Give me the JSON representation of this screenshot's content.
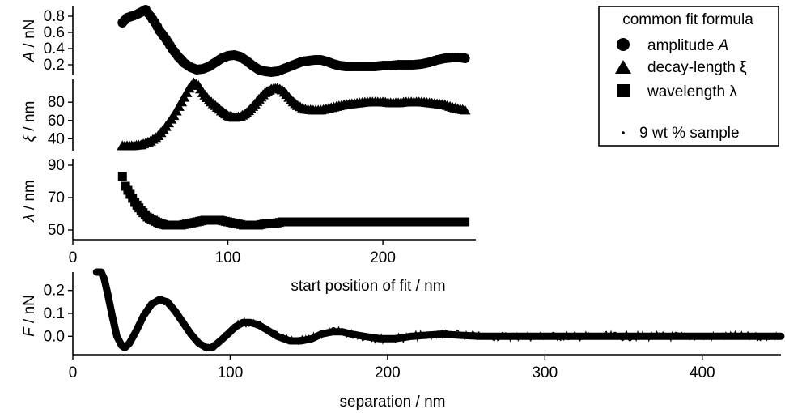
{
  "chart_data": [
    {
      "type": "scatter",
      "id": "amplitude",
      "ylabel": "A / nN",
      "ylabel_var": "A",
      "ylabel_unit": " / nN",
      "ylim": [
        0.08,
        0.92
      ],
      "yticks": [
        0.2,
        0.4,
        0.6,
        0.8
      ],
      "ytick_labels": [
        "0.2",
        "0.4",
        "0.6",
        "0.8"
      ],
      "marker": "circle",
      "series": [
        {
          "name": "amplitude A",
          "x": [
            32,
            35,
            38,
            41,
            44,
            47,
            50,
            53,
            56,
            60,
            64,
            68,
            72,
            76,
            80,
            84,
            88,
            92,
            96,
            100,
            104,
            108,
            112,
            116,
            120,
            124,
            128,
            132,
            136,
            140,
            144,
            148,
            152,
            156,
            160,
            164,
            168,
            172,
            176,
            180,
            185,
            190,
            195,
            200,
            205,
            210,
            215,
            220,
            225,
            230,
            235,
            240,
            245,
            250,
            253
          ],
          "y": [
            0.72,
            0.78,
            0.8,
            0.82,
            0.85,
            0.88,
            0.8,
            0.72,
            0.62,
            0.52,
            0.4,
            0.3,
            0.22,
            0.17,
            0.14,
            0.15,
            0.18,
            0.23,
            0.28,
            0.31,
            0.32,
            0.3,
            0.25,
            0.19,
            0.14,
            0.12,
            0.11,
            0.12,
            0.15,
            0.18,
            0.21,
            0.24,
            0.25,
            0.26,
            0.26,
            0.24,
            0.21,
            0.19,
            0.18,
            0.18,
            0.18,
            0.18,
            0.18,
            0.19,
            0.19,
            0.2,
            0.2,
            0.2,
            0.21,
            0.23,
            0.26,
            0.28,
            0.29,
            0.29,
            0.28
          ]
        }
      ]
    },
    {
      "type": "scatter",
      "id": "decay-length",
      "ylabel": "ξ / nm",
      "ylabel_var": "ξ",
      "ylabel_unit": " / nm",
      "ylim": [
        27,
        105
      ],
      "yticks": [
        40,
        60,
        80
      ],
      "ytick_labels": [
        "40",
        "60",
        "80"
      ],
      "marker": "triangle",
      "series": [
        {
          "name": "decay-length ξ",
          "x": [
            32,
            38,
            44,
            50,
            55,
            60,
            65,
            70,
            75,
            78,
            81,
            84,
            88,
            92,
            96,
            100,
            104,
            108,
            112,
            116,
            120,
            124,
            128,
            132,
            135,
            138,
            141,
            145,
            150,
            155,
            160,
            165,
            170,
            175,
            180,
            185,
            190,
            195,
            200,
            205,
            210,
            215,
            220,
            225,
            230,
            235,
            240,
            245,
            250,
            253
          ],
          "y": [
            32,
            32,
            33,
            37,
            43,
            53,
            65,
            80,
            95,
            101,
            98,
            90,
            82,
            76,
            70,
            65,
            63,
            64,
            68,
            75,
            83,
            90,
            94,
            95,
            93,
            88,
            82,
            76,
            72,
            71,
            71,
            73,
            75,
            77,
            78,
            79,
            80,
            80,
            80,
            79,
            79,
            80,
            80,
            80,
            79,
            78,
            77,
            74,
            72,
            71
          ]
        }
      ]
    },
    {
      "type": "scatter",
      "id": "wavelength",
      "ylabel": "λ / nm",
      "ylabel_var": "λ",
      "ylabel_unit": " / nm",
      "xlabel": "start position of fit / nm",
      "xlim": [
        0,
        260
      ],
      "xticks": [
        0,
        100,
        200
      ],
      "xtick_labels": [
        "0",
        "100",
        "200"
      ],
      "ylim": [
        44,
        94
      ],
      "yticks": [
        50,
        70,
        90
      ],
      "ytick_labels": [
        "50",
        "70",
        "90"
      ],
      "marker": "square",
      "series": [
        {
          "name": "wavelength λ",
          "x": [
            32,
            34,
            37,
            40,
            44,
            48,
            52,
            56,
            60,
            65,
            70,
            75,
            80,
            85,
            90,
            95,
            100,
            105,
            110,
            115,
            120,
            125,
            130,
            135,
            140,
            145,
            150,
            160,
            170,
            180,
            190,
            200,
            210,
            220,
            230,
            240,
            250,
            253
          ],
          "y": [
            83,
            77,
            72,
            67,
            62,
            58,
            56,
            54,
            53,
            53,
            53,
            54,
            55,
            56,
            56,
            56,
            55,
            54,
            53,
            53,
            53,
            54,
            54,
            55,
            55,
            55,
            55,
            55,
            55,
            55,
            55,
            55,
            55,
            55,
            55,
            55,
            55,
            55
          ]
        }
      ]
    },
    {
      "type": "line",
      "id": "force",
      "ylabel": "F / nN",
      "ylabel_var": "F",
      "ylabel_unit": " / nN",
      "xlabel": "separation / nm",
      "xlim": [
        0,
        450
      ],
      "xticks": [
        0,
        100,
        200,
        300,
        400
      ],
      "xtick_labels": [
        "0",
        "100",
        "200",
        "300",
        "400"
      ],
      "ylim": [
        -0.08,
        0.28
      ],
      "yticks": [
        0.0,
        0.1,
        0.2
      ],
      "ytick_labels": [
        "0.0",
        "0.1",
        "0.2"
      ],
      "series": [
        {
          "name": "9 wt % sample",
          "x": [
            15,
            18,
            20,
            22,
            25,
            28,
            31,
            33,
            36,
            40,
            45,
            50,
            55,
            60,
            65,
            70,
            75,
            80,
            85,
            88,
            92,
            97,
            103,
            108,
            113,
            118,
            123,
            130,
            138,
            145,
            152,
            158,
            165,
            171,
            177,
            185,
            195,
            205,
            215,
            225,
            235,
            245,
            260,
            280,
            300,
            330,
            360,
            400,
            450
          ],
          "y": [
            0.28,
            0.28,
            0.25,
            0.19,
            0.09,
            0.0,
            -0.04,
            -0.05,
            -0.03,
            0.02,
            0.09,
            0.14,
            0.16,
            0.15,
            0.11,
            0.06,
            0.01,
            -0.03,
            -0.05,
            -0.05,
            -0.03,
            0.0,
            0.04,
            0.06,
            0.06,
            0.05,
            0.03,
            0.0,
            -0.02,
            -0.02,
            -0.01,
            0.01,
            0.02,
            0.02,
            0.01,
            0.0,
            -0.01,
            -0.01,
            0.0,
            0.005,
            0.01,
            0.005,
            0.0,
            0.0,
            0.0,
            0.0,
            0.0,
            0.0,
            0.0
          ]
        }
      ]
    }
  ],
  "legend": {
    "title": "common fit formula",
    "items": [
      {
        "marker": "circle",
        "label": "amplitude A",
        "label_text": "amplitude ",
        "label_var": "A"
      },
      {
        "marker": "triangle",
        "label": "decay-length ξ",
        "label_text": "decay-length ξ",
        "label_var": ""
      },
      {
        "marker": "square",
        "label": "wavelength λ",
        "label_text": "wavelength λ",
        "label_var": ""
      }
    ],
    "sample": {
      "marker": "dot",
      "label": "9 wt % sample"
    }
  }
}
